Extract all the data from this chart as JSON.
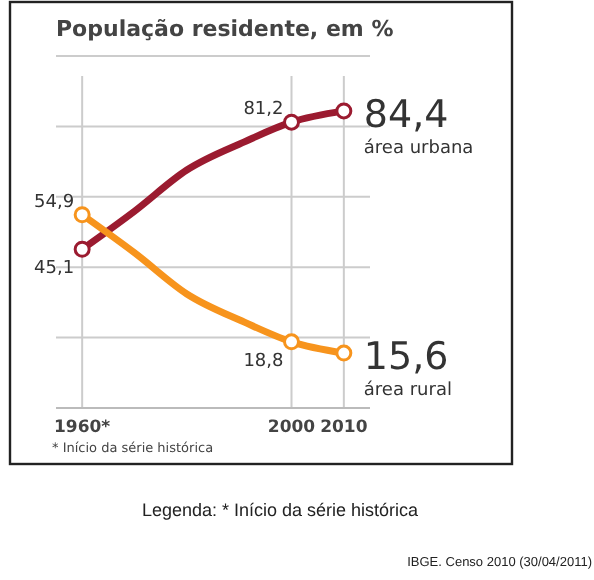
{
  "chart_data": {
    "type": "line",
    "title": "População residente, em %",
    "x": [
      1960,
      1970,
      1980,
      1991,
      2000,
      2010
    ],
    "xlim": [
      1955,
      2015
    ],
    "xticks": [
      {
        "value": 1960,
        "label": "1960*"
      },
      2000,
      2010
    ],
    "ylim": [
      0,
      100
    ],
    "yticks": [
      {
        "value": 20,
        "label": null
      },
      {
        "value": 40,
        "label": null
      },
      {
        "value": 60,
        "label": null
      },
      {
        "value": 80,
        "label": null
      },
      {
        "value": 100,
        "label": null
      }
    ],
    "tick_labels": "x",
    "grid": true,
    "marker": "circle",
    "line_style": "solid",
    "series": [
      {
        "name": "área urbana",
        "color": "#9b1b30",
        "values": [
          45.1,
          55.9,
          67.6,
          75.6,
          81.2,
          84.4
        ],
        "value_labels": [
          "45,1",
          null,
          null,
          null,
          "81,2",
          "84,4"
        ]
      },
      {
        "name": "área rural",
        "color": "#f7941d",
        "values": [
          54.9,
          44.1,
          32.4,
          24.4,
          18.8,
          15.6
        ],
        "value_labels": [
          "54,9",
          null,
          null,
          null,
          "18,8",
          "15,6"
        ]
      }
    ],
    "annotations": [
      "* Início da série histórica",
      "Legenda: * Início da série histórica",
      "IBGE. Censo 2010 (30/04/2011)"
    ]
  }
}
